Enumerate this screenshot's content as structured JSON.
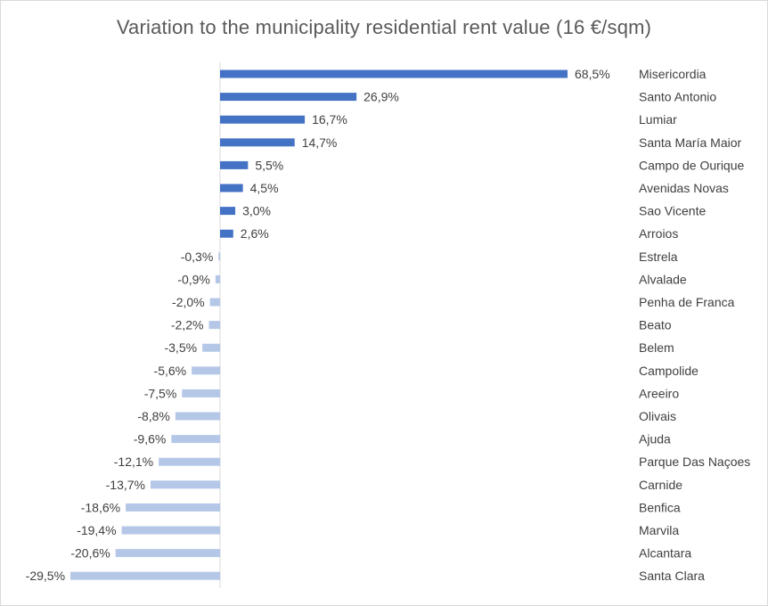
{
  "chart_data": {
    "type": "bar",
    "orientation": "horizontal",
    "title": "Variation to the municipality residential rent value (16 €/sqm)",
    "categories": [
      "Misericordia",
      "Santo Antonio",
      "Lumiar",
      "Santa María Maior",
      "Campo de Ourique",
      "Avenidas Novas",
      "Sao Vicente",
      "Arroios",
      "Estrela",
      "Alvalade",
      "Penha de Franca",
      "Beato",
      "Belem",
      "Campolide",
      "Areeiro",
      "Olivais",
      "Ajuda",
      "Parque Das Naçoes",
      "Carnide",
      "Benfica",
      "Marvila",
      "Alcantara",
      "Santa Clara"
    ],
    "values": [
      68.5,
      26.9,
      16.7,
      14.7,
      5.5,
      4.5,
      3.0,
      2.6,
      -0.3,
      -0.9,
      -2.0,
      -2.2,
      -3.5,
      -5.6,
      -7.5,
      -8.8,
      -9.6,
      -12.1,
      -13.7,
      -18.6,
      -19.4,
      -20.6,
      -29.5
    ],
    "labels": [
      "68,5%",
      "26,9%",
      "16,7%",
      "14,7%",
      "5,5%",
      "4,5%",
      "3,0%",
      "2,6%",
      "-0,3%",
      "-0,9%",
      "-2,0%",
      "-2,2%",
      "-3,5%",
      "-5,6%",
      "-7,5%",
      "-8,8%",
      "-9,6%",
      "-12,1%",
      "-13,7%",
      "-18,6%",
      "-19,4%",
      "-20,6%",
      "-29,5%"
    ],
    "xlim": [
      -29.5,
      68.5
    ],
    "grid": false,
    "legend": "none",
    "colors": {
      "positive": "#4472C4",
      "negative": "#B4C7E7",
      "axis": "#d9d9d9"
    }
  }
}
